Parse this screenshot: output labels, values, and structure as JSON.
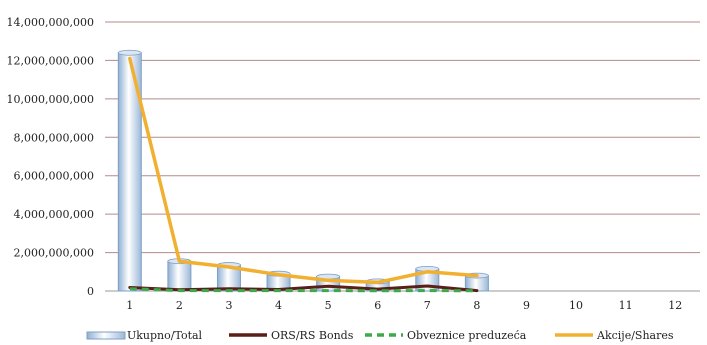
{
  "chart_data": {
    "type": "bar",
    "title": "",
    "xlabel": "",
    "ylabel": "",
    "categories": [
      "1",
      "2",
      "3",
      "4",
      "5",
      "6",
      "7",
      "8",
      "9",
      "10",
      "11",
      "12"
    ],
    "ylim": [
      0,
      14000000000
    ],
    "yticks": [
      0,
      2000000000,
      4000000000,
      6000000000,
      8000000000,
      10000000000,
      12000000000,
      14000000000
    ],
    "ytick_labels": [
      "0",
      "2,000,000,000",
      "4,000,000,000",
      "6,000,000,000",
      "8,000,000,000",
      "10,000,000,000",
      "12,000,000,000",
      "14,000,000,000"
    ],
    "grid": true,
    "legend_position": "bottom",
    "series": [
      {
        "name": "Ukupno/Total",
        "kind": "bar",
        "color": "#b9cde3",
        "values": [
          12400000000,
          1550000000,
          1350000000,
          900000000,
          750000000,
          500000000,
          1150000000,
          800000000,
          null,
          null,
          null,
          null
        ]
      },
      {
        "name": "ORS/RS Bonds",
        "kind": "line",
        "color": "#5a1f18",
        "values": [
          180000000,
          60000000,
          120000000,
          80000000,
          250000000,
          100000000,
          260000000,
          20000000,
          null,
          null,
          null,
          null
        ]
      },
      {
        "name": "Obveznice preduzeća",
        "kind": "line-dashed",
        "color": "#3daa4a",
        "values": [
          120000000,
          20000000,
          20000000,
          20000000,
          20000000,
          10000000,
          20000000,
          10000000,
          null,
          null,
          null,
          null
        ]
      },
      {
        "name": "Akcije/Shares",
        "kind": "line",
        "color": "#f2b030",
        "values": [
          12100000000,
          1550000000,
          1250000000,
          850000000,
          550000000,
          450000000,
          1000000000,
          800000000,
          null,
          null,
          null,
          null
        ]
      }
    ]
  }
}
